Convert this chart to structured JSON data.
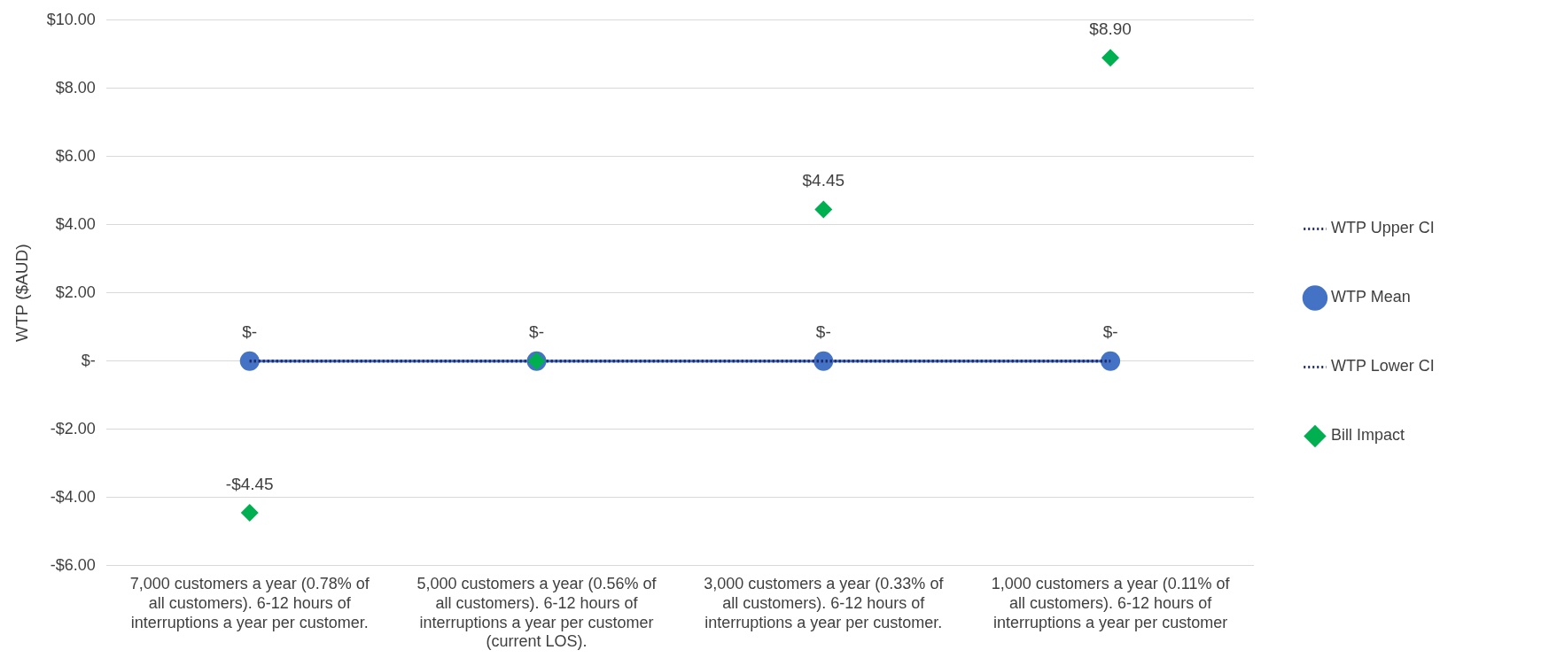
{
  "chart_data": {
    "type": "line",
    "ylabel": "WTP ($AUD)",
    "categories": [
      "7,000 customers a year (0.78% of all customers). 6-12 hours of interruptions a year per customer.",
      "5,000 customers a year (0.56% of all customers). 6-12 hours of interruptions a year per customer (current LOS).",
      "3,000 customers a year (0.33% of all customers). 6-12 hours of interruptions a year per customer.",
      "1,000 customers a year (0.11% of all customers). 6-12 hours of interruptions a year per customer"
    ],
    "series": [
      {
        "name": "WTP Upper CI",
        "type": "line",
        "color": "#1f2a6b",
        "line_style": "dotted",
        "marker": "none",
        "values": [
          0,
          0,
          0,
          0
        ]
      },
      {
        "name": "WTP Mean",
        "type": "line",
        "color": "#4472c4",
        "line_style": "solid",
        "marker": "circle",
        "values": [
          0,
          0,
          0,
          0
        ],
        "value_labels": [
          "$-",
          "$-",
          "$-",
          "$-"
        ]
      },
      {
        "name": "WTP Lower CI",
        "type": "line",
        "color": "#1f2a6b",
        "line_style": "dotted",
        "marker": "none",
        "values": [
          0,
          0,
          0,
          0
        ]
      },
      {
        "name": "Bill Impact",
        "type": "scatter",
        "color": "#00b050",
        "marker": "diamond",
        "values": [
          -4.45,
          0,
          4.45,
          8.9
        ],
        "value_labels": [
          "-$4.45",
          null,
          "$4.45",
          "$8.90"
        ]
      }
    ],
    "ylim": [
      -6,
      10
    ],
    "yticks": [
      {
        "value": -6,
        "label": "-$6.00"
      },
      {
        "value": -4,
        "label": "-$4.00"
      },
      {
        "value": -2,
        "label": "-$2.00"
      },
      {
        "value": 0,
        "label": "$-"
      },
      {
        "value": 2,
        "label": "$2.00"
      },
      {
        "value": 4,
        "label": "$4.00"
      },
      {
        "value": 6,
        "label": "$6.00"
      },
      {
        "value": 8,
        "label": "$8.00"
      },
      {
        "value": 10,
        "label": "$10.00"
      }
    ],
    "grid": "y",
    "legend": "right"
  }
}
